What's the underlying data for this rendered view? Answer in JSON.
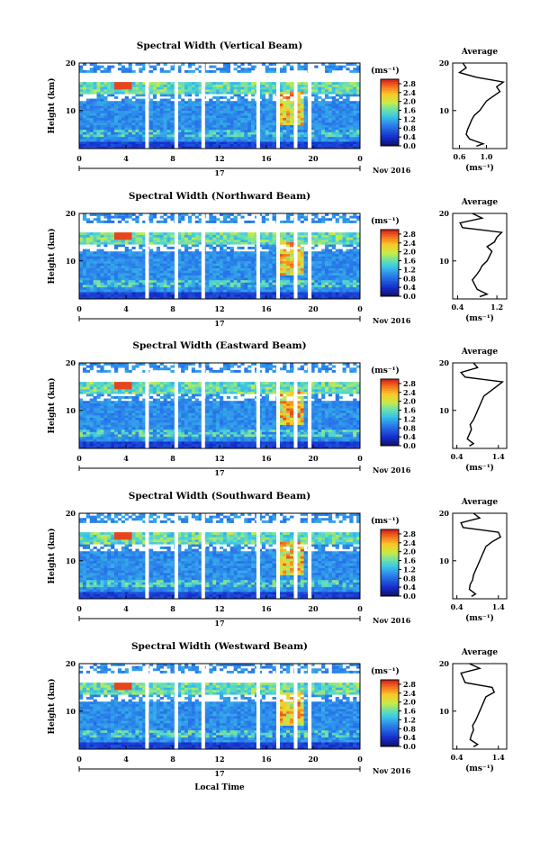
{
  "chart_data": [
    {
      "type": "heatmap",
      "title": "Spectral Width (Vertical Beam)",
      "ylabel": "Height (km)",
      "x_ticks": [
        "0",
        "4",
        "8",
        "12",
        "16",
        "20",
        "0"
      ],
      "y_ticks": [
        "20",
        "10"
      ],
      "xlim": [
        0,
        24
      ],
      "ylim": [
        2,
        20
      ],
      "date_day": "17",
      "date_month": "Nov 2016",
      "colorbar": {
        "unit": "(ms⁻¹)",
        "ticks": [
          "2.8",
          "2.4",
          "2.0",
          "1.6",
          "1.2",
          "0.8",
          "0.4",
          "0.0"
        ],
        "range": [
          0,
          3.0
        ]
      },
      "data_gaps_hours": [
        5.8,
        8.3,
        10.6,
        15.3,
        17.0,
        18.5,
        19.7
      ],
      "avg_profile": {
        "title": "Average",
        "xlabel": "(ms⁻¹)",
        "x_ticks": [
          "0.6",
          "1.0"
        ],
        "xlim": [
          0.5,
          1.3
        ],
        "heights_km": [
          2.5,
          3,
          4,
          5,
          6,
          7,
          8,
          9,
          10,
          11,
          12,
          13,
          14,
          15,
          16,
          17,
          18,
          19,
          20
        ],
        "values": [
          0.85,
          0.95,
          0.75,
          0.7,
          0.72,
          0.75,
          0.78,
          0.82,
          0.9,
          0.95,
          1.0,
          1.1,
          1.2,
          1.15,
          1.25,
          0.85,
          0.6,
          0.7,
          0.65
        ]
      }
    },
    {
      "type": "heatmap",
      "title": "Spectral Width (Northward Beam)",
      "ylabel": "Height (km)",
      "x_ticks": [
        "0",
        "4",
        "8",
        "12",
        "16",
        "20",
        "0"
      ],
      "y_ticks": [
        "20",
        "10"
      ],
      "xlim": [
        0,
        24
      ],
      "ylim": [
        2,
        20
      ],
      "date_day": "17",
      "date_month": "Nov 2016",
      "colorbar": {
        "unit": "(ms⁻¹)",
        "ticks": [
          "2.8",
          "2.4",
          "2.0",
          "1.6",
          "1.2",
          "0.8",
          "0.4",
          "0.0"
        ],
        "range": [
          0,
          3.0
        ]
      },
      "data_gaps_hours": [
        5.8,
        8.3,
        10.6,
        15.3,
        17.0,
        18.5,
        19.7
      ],
      "avg_profile": {
        "title": "Average",
        "xlabel": "(ms⁻¹)",
        "x_ticks": [
          "0.4",
          "1.2"
        ],
        "xlim": [
          0.3,
          1.4
        ],
        "heights_km": [
          2.5,
          3,
          4,
          5,
          6,
          7,
          8,
          9,
          10,
          11,
          12,
          13,
          14,
          15,
          16,
          17,
          18,
          19,
          20
        ],
        "values": [
          0.85,
          1.0,
          0.8,
          0.75,
          0.7,
          0.78,
          0.85,
          0.9,
          1.0,
          1.05,
          1.1,
          1.0,
          1.15,
          1.2,
          1.3,
          0.5,
          0.45,
          0.9,
          0.7
        ]
      }
    },
    {
      "type": "heatmap",
      "title": "Spectral Width (Eastward Beam)",
      "ylabel": "Height (km)",
      "x_ticks": [
        "0",
        "4",
        "8",
        "12",
        "16",
        "20",
        "0"
      ],
      "y_ticks": [
        "20",
        "10"
      ],
      "xlim": [
        0,
        24
      ],
      "ylim": [
        2,
        20
      ],
      "date_day": "17",
      "date_month": "Nov 2016",
      "colorbar": {
        "unit": "(ms⁻¹)",
        "ticks": [
          "2.8",
          "2.4",
          "2.0",
          "1.6",
          "1.2",
          "0.8",
          "0.4",
          "0.0"
        ],
        "range": [
          0,
          3.0
        ]
      },
      "data_gaps_hours": [
        5.8,
        8.3,
        10.6,
        15.3,
        17.0,
        18.5,
        19.7
      ],
      "avg_profile": {
        "title": "Average",
        "xlabel": "(ms⁻¹)",
        "x_ticks": [
          "0.4",
          "1.4"
        ],
        "xlim": [
          0.3,
          1.6
        ],
        "heights_km": [
          2.5,
          3,
          4,
          5,
          6,
          7,
          8,
          9,
          10,
          11,
          12,
          13,
          14,
          15,
          16,
          17,
          18,
          19,
          20
        ],
        "values": [
          0.7,
          0.8,
          0.65,
          0.7,
          0.75,
          0.72,
          0.8,
          0.85,
          0.9,
          0.95,
          1.0,
          1.05,
          1.2,
          1.35,
          1.5,
          0.6,
          0.5,
          0.9,
          0.8
        ]
      }
    },
    {
      "type": "heatmap",
      "title": "Spectral Width (Southward Beam)",
      "ylabel": "Height (km)",
      "x_ticks": [
        "0",
        "4",
        "8",
        "12",
        "16",
        "20",
        "0"
      ],
      "y_ticks": [
        "20",
        "10"
      ],
      "xlim": [
        0,
        24
      ],
      "ylim": [
        2,
        20
      ],
      "date_day": "17",
      "date_month": "Nov 2016",
      "colorbar": {
        "unit": "(ms⁻¹)",
        "ticks": [
          "2.8",
          "2.4",
          "2.0",
          "1.6",
          "1.2",
          "0.8",
          "0.4",
          "0.0"
        ],
        "range": [
          0,
          3.0
        ]
      },
      "data_gaps_hours": [
        5.8,
        8.3,
        10.6,
        15.3,
        17.0,
        18.5,
        19.7
      ],
      "avg_profile": {
        "title": "Average",
        "xlabel": "(ms⁻¹)",
        "x_ticks": [
          "0.4",
          "1.4"
        ],
        "xlim": [
          0.3,
          1.6
        ],
        "heights_km": [
          2.5,
          3,
          4,
          5,
          6,
          7,
          8,
          9,
          10,
          11,
          12,
          13,
          14,
          15,
          16,
          17,
          18,
          19,
          20
        ],
        "values": [
          0.75,
          0.85,
          0.7,
          0.72,
          0.78,
          0.8,
          0.85,
          0.9,
          0.95,
          1.0,
          1.05,
          1.1,
          1.25,
          1.45,
          1.4,
          0.55,
          0.5,
          0.95,
          0.8
        ]
      }
    },
    {
      "type": "heatmap",
      "title": "Spectral Width (Westward Beam)",
      "ylabel": "Height (km)",
      "x_ticks": [
        "0",
        "4",
        "8",
        "12",
        "16",
        "20",
        "0"
      ],
      "y_ticks": [
        "20",
        "10"
      ],
      "xlim": [
        0,
        24
      ],
      "ylim": [
        2,
        20
      ],
      "date_day": "17",
      "date_month": "Nov 2016",
      "xlabel": "Local Time",
      "colorbar": {
        "unit": "(ms⁻¹)",
        "ticks": [
          "2.8",
          "2.4",
          "2.0",
          "1.6",
          "1.2",
          "0.8",
          "0.4",
          "0.0"
        ],
        "range": [
          0,
          3.0
        ]
      },
      "data_gaps_hours": [
        5.8,
        8.3,
        10.6,
        15.3,
        17.0,
        18.5,
        19.7
      ],
      "avg_profile": {
        "title": "Average",
        "xlabel": "(ms⁻¹)",
        "x_ticks": [
          "0.4",
          "1.4"
        ],
        "xlim": [
          0.3,
          1.6
        ],
        "heights_km": [
          2.5,
          3,
          4,
          5,
          6,
          7,
          8,
          9,
          10,
          11,
          12,
          13,
          14,
          15,
          16,
          17,
          18,
          19,
          20
        ],
        "values": [
          0.8,
          0.9,
          0.72,
          0.75,
          0.8,
          0.78,
          0.85,
          0.9,
          0.95,
          1.0,
          1.05,
          1.1,
          1.3,
          1.25,
          0.6,
          0.55,
          0.5,
          0.95,
          0.7
        ]
      }
    }
  ]
}
